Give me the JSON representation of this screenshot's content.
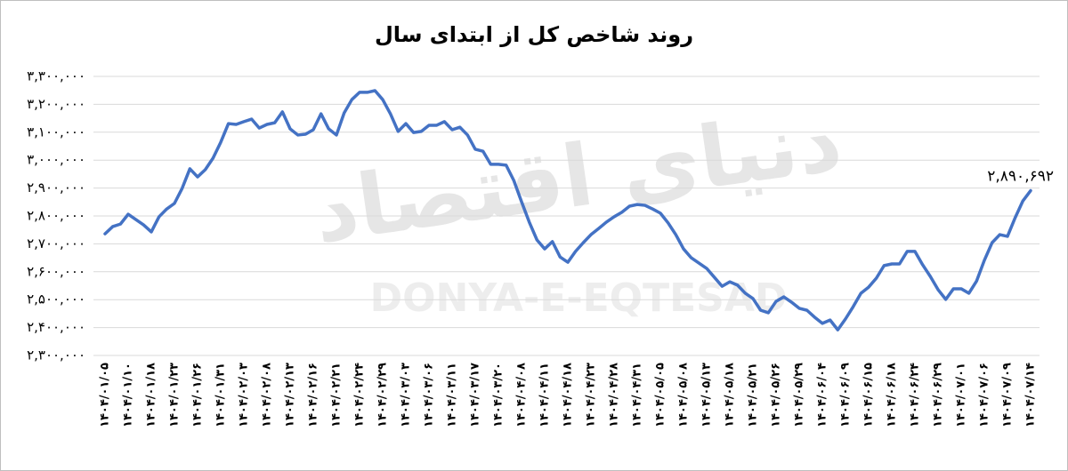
{
  "chart_data": {
    "type": "line",
    "title": "روند شاخص کل از ابتدای سال",
    "watermarks": [
      "دنیای اقتصاد",
      "DONYA-E-EQTESAD"
    ],
    "categories": [
      "۱۴۰۴/۰۱/۰۵",
      null,
      null,
      "۱۴۰۴/۰۱/۱۰",
      null,
      null,
      "۱۴۰۴/۰۱/۱۸",
      null,
      null,
      "۱۴۰۴/۰۱/۲۳",
      null,
      null,
      "۱۴۰۴/۰۱/۲۶",
      null,
      null,
      "۱۴۰۴/۰۱/۳۱",
      null,
      null,
      "۱۴۰۴/۰۲/۰۳",
      null,
      null,
      "۱۴۰۴/۰۲/۰۸",
      null,
      null,
      "۱۴۰۴/۰۲/۱۳",
      null,
      null,
      "۱۴۰۴/۰۲/۱۶",
      null,
      null,
      "۱۴۰۴/۰۲/۲۱",
      null,
      null,
      "۱۴۰۴/۰۲/۲۴",
      null,
      null,
      "۱۴۰۴/۰۲/۲۹",
      null,
      null,
      "۱۴۰۴/۰۳/۰۳",
      null,
      null,
      "۱۴۰۴/۰۳/۰۶",
      null,
      null,
      "۱۴۰۴/۰۳/۱۱",
      null,
      null,
      "۱۴۰۴/۰۳/۱۷",
      null,
      null,
      "۱۴۰۴/۰۳/۲۰",
      null,
      null,
      "۱۴۰۴/۰۴/۰۸",
      null,
      null,
      "۱۴۰۴/۰۴/۱۱",
      null,
      null,
      "۱۴۰۴/۰۴/۱۸",
      null,
      null,
      "۱۴۰۴/۰۴/۲۳",
      null,
      null,
      "۱۴۰۴/۰۴/۲۸",
      null,
      null,
      "۱۴۰۴/۰۴/۳۱",
      null,
      null,
      "۱۴۰۴/۰۵/۰۵",
      null,
      null,
      "۱۴۰۴/۰۵/۰۸",
      null,
      null,
      "۱۴۰۴/۰۵/۱۳",
      null,
      null,
      "۱۴۰۴/۰۵/۱۸",
      null,
      null,
      "۱۴۰۴/۰۵/۲۱",
      null,
      null,
      "۱۴۰۴/۰۵/۲۶",
      null,
      null,
      "۱۴۰۴/۰۵/۲۹",
      null,
      null,
      "۱۴۰۴/۰۶/۰۴",
      null,
      null,
      "۱۴۰۴/۰۶/۰۹",
      null,
      null,
      "۱۴۰۴/۰۶/۱۵",
      null,
      null,
      "۱۴۰۴/۰۶/۱۸",
      null,
      null,
      "۱۴۰۴/۰۶/۲۴",
      null,
      null,
      "۱۴۰۴/۰۶/۲۹",
      null,
      null,
      "۱۴۰۴/۰۷/۰۱",
      null,
      null,
      "۱۴۰۴/۰۷/۰۶",
      null,
      null,
      "۱۴۰۴/۰۷/۰۹",
      null,
      null,
      "۱۴۰۴/۰۷/۱۴"
    ],
    "values": [
      2736000,
      2762000,
      2771000,
      2806000,
      2787000,
      2768000,
      2743000,
      2797000,
      2825000,
      2845000,
      2899000,
      2969000,
      2940000,
      2966000,
      3007000,
      3064000,
      3131000,
      3128000,
      3138000,
      3147000,
      3115000,
      3128000,
      3134000,
      3173000,
      3112000,
      3090000,
      3093000,
      3109000,
      3166000,
      3112000,
      3090000,
      3169000,
      3217000,
      3243000,
      3243000,
      3249000,
      3217000,
      3166000,
      3103000,
      3131000,
      3099000,
      3103000,
      3125000,
      3125000,
      3138000,
      3109000,
      3118000,
      3090000,
      3039000,
      3032000,
      2985000,
      2985000,
      2982000,
      2927000,
      2851000,
      2778000,
      2714000,
      2682000,
      2708000,
      2653000,
      2634000,
      2673000,
      2704000,
      2733000,
      2755000,
      2778000,
      2797000,
      2813000,
      2835000,
      2841000,
      2838000,
      2825000,
      2810000,
      2775000,
      2733000,
      2682000,
      2650000,
      2631000,
      2612000,
      2580000,
      2548000,
      2564000,
      2552000,
      2523000,
      2504000,
      2462000,
      2453000,
      2494000,
      2510000,
      2491000,
      2469000,
      2462000,
      2437000,
      2415000,
      2427000,
      2392000,
      2431000,
      2475000,
      2523000,
      2545000,
      2577000,
      2622000,
      2628000,
      2628000,
      2673000,
      2673000,
      2625000,
      2583000,
      2536000,
      2501000,
      2539000,
      2539000,
      2523000,
      2567000,
      2641000,
      2704000,
      2733000,
      2727000,
      2794000,
      2854000,
      2890692
    ],
    "value_labels": [
      null,
      null,
      null,
      null,
      null,
      null,
      null,
      null,
      null,
      null,
      null,
      null,
      null,
      null,
      null,
      null,
      null,
      null,
      null,
      null,
      null,
      null,
      null,
      null,
      null,
      null,
      null,
      null,
      null,
      null,
      null,
      null,
      null,
      null,
      null,
      null,
      null,
      null,
      null,
      null,
      null,
      null,
      null,
      null,
      null,
      null,
      null,
      null,
      null,
      null,
      null,
      null,
      null,
      null,
      null,
      null,
      null,
      null,
      null,
      null,
      null,
      null,
      null,
      null,
      null,
      null,
      null,
      null,
      null,
      null,
      null,
      null,
      null,
      null,
      null,
      null,
      null,
      null,
      null,
      null,
      null,
      null,
      null,
      null,
      null,
      null,
      null,
      null,
      null,
      null,
      null,
      null,
      null,
      null,
      null,
      null,
      null,
      null,
      null,
      null,
      null,
      null,
      null,
      null,
      null,
      null,
      null,
      null,
      null,
      null,
      null,
      null,
      null,
      null,
      null,
      null,
      null,
      null,
      null,
      null,
      "۲,۸۹۰,۶۹۲"
    ],
    "color": "#4472c4",
    "ylim": [
      2300000,
      3300000
    ],
    "yticks": [
      {
        "value": 2300000,
        "label": "۲,۳۰۰,۰۰۰"
      },
      {
        "value": 2400000,
        "label": "۲,۴۰۰,۰۰۰"
      },
      {
        "value": 2500000,
        "label": "۲,۵۰۰,۰۰۰"
      },
      {
        "value": 2600000,
        "label": "۲,۶۰۰,۰۰۰"
      },
      {
        "value": 2700000,
        "label": "۲,۷۰۰,۰۰۰"
      },
      {
        "value": 2800000,
        "label": "۲,۸۰۰,۰۰۰"
      },
      {
        "value": 2900000,
        "label": "۲,۹۰۰,۰۰۰"
      },
      {
        "value": 3000000,
        "label": "۳,۰۰۰,۰۰۰"
      },
      {
        "value": 3100000,
        "label": "۳,۱۰۰,۰۰۰"
      },
      {
        "value": 3200000,
        "label": "۳,۲۰۰,۰۰۰"
      },
      {
        "value": 3300000,
        "label": "۳,۳۰۰,۰۰۰"
      }
    ],
    "grid": true
  }
}
